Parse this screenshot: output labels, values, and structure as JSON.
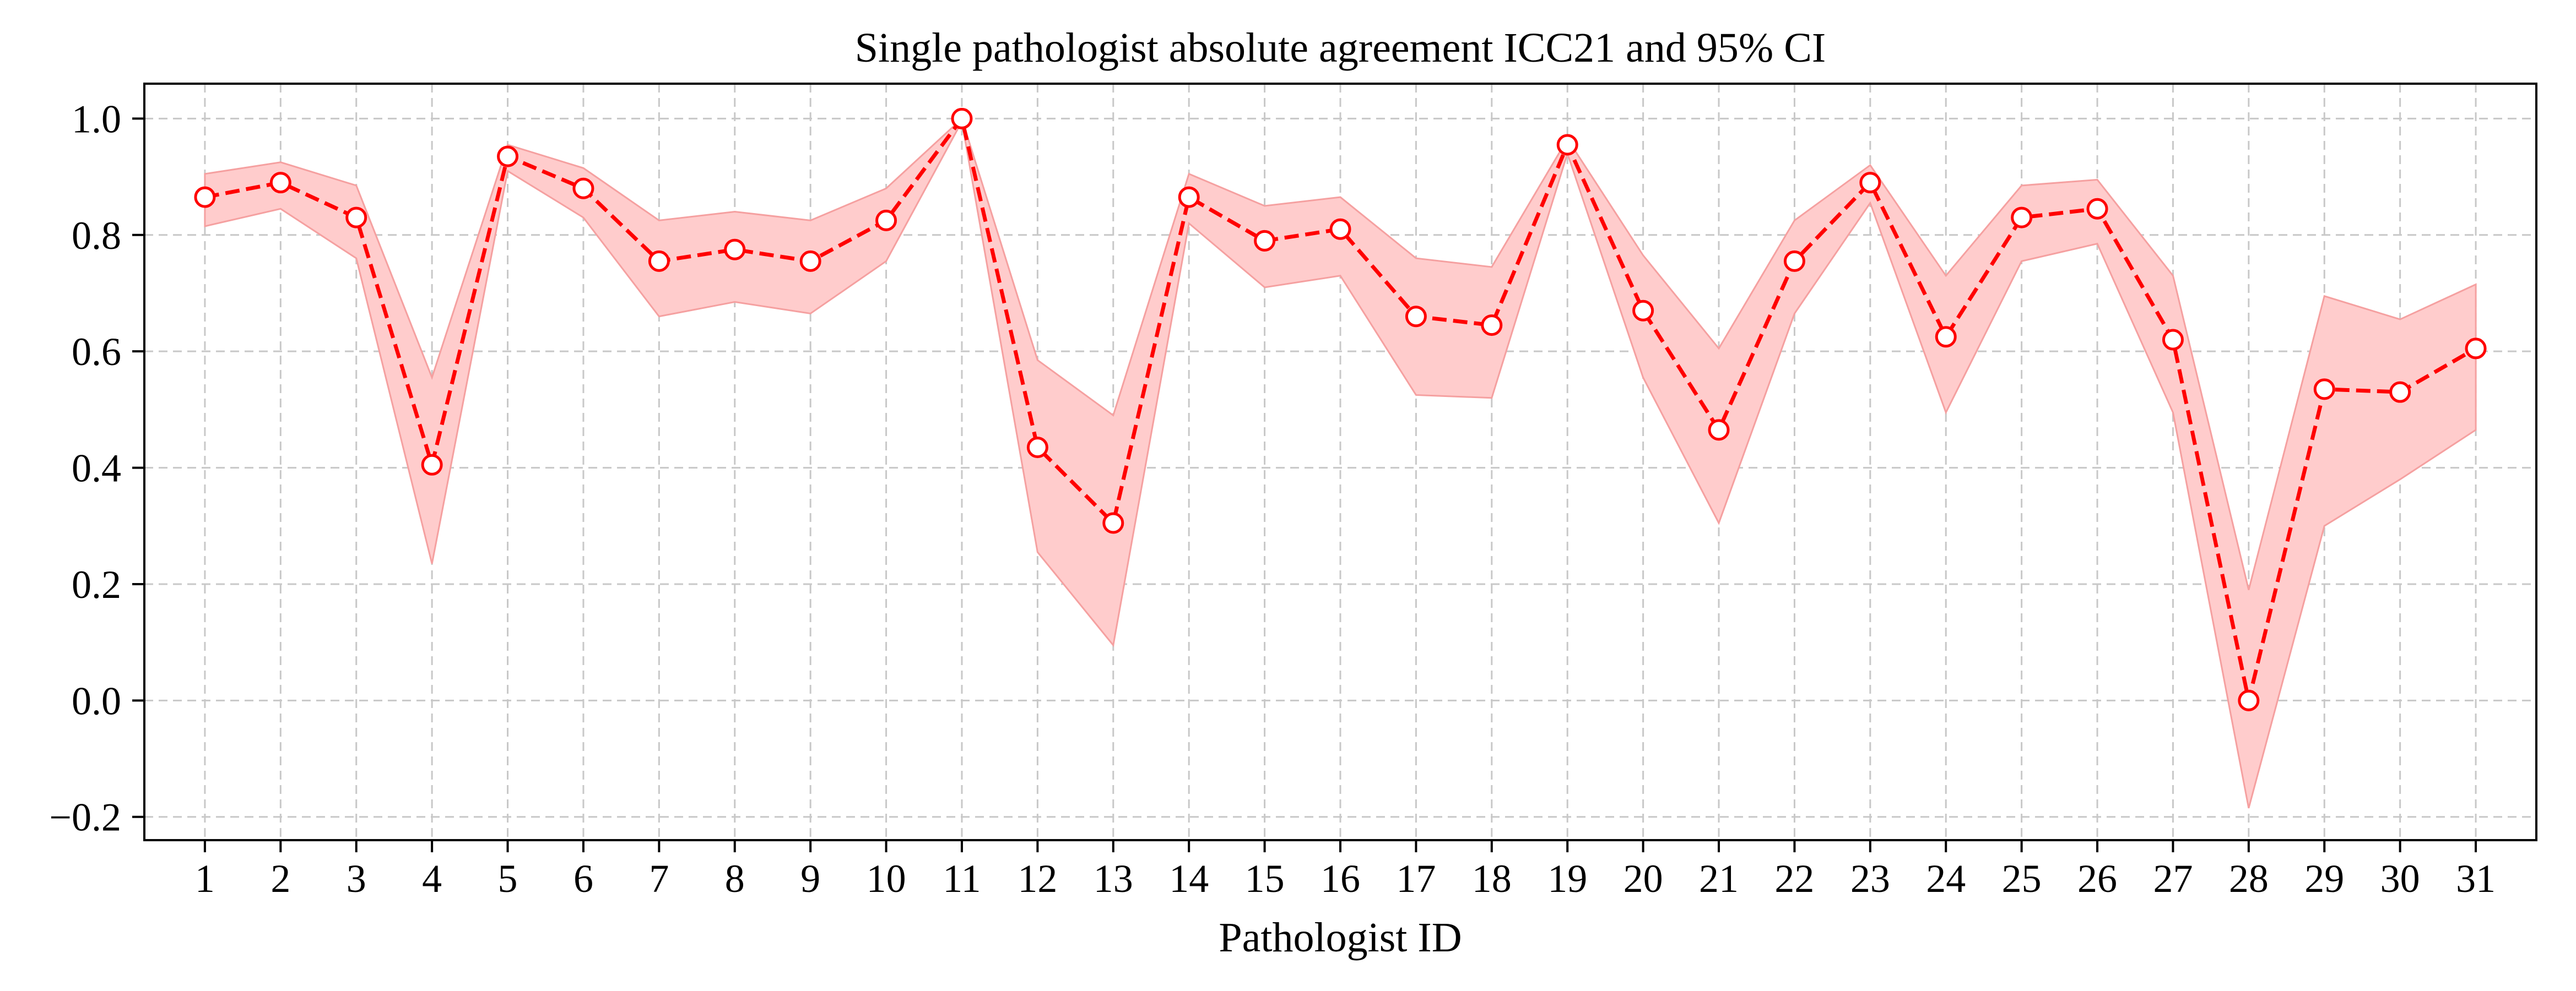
{
  "chart_data": {
    "type": "line",
    "title": "Single pathologist absolute agreement ICC21 and 95% CI",
    "xlabel": "Pathologist ID",
    "ylabel": "",
    "x": [
      1,
      2,
      3,
      4,
      5,
      6,
      7,
      8,
      9,
      10,
      11,
      12,
      13,
      14,
      15,
      16,
      17,
      18,
      19,
      20,
      21,
      22,
      23,
      24,
      25,
      26,
      27,
      28,
      29,
      30,
      31
    ],
    "xticklabels": [
      "1",
      "2",
      "3",
      "4",
      "5",
      "6",
      "7",
      "8",
      "9",
      "10",
      "11",
      "12",
      "13",
      "14",
      "15",
      "16",
      "17",
      "18",
      "19",
      "20",
      "21",
      "22",
      "23",
      "24",
      "25",
      "26",
      "27",
      "28",
      "29",
      "30",
      "31"
    ],
    "yticks": [
      -0.2,
      0.0,
      0.2,
      0.4,
      0.6,
      0.8,
      1.0
    ],
    "yticklabels": [
      "−0.2",
      "0.0",
      "0.2",
      "0.4",
      "0.6",
      "0.8",
      "1.0"
    ],
    "ylim": [
      -0.24,
      1.06
    ],
    "xlim": [
      0.2,
      31.8
    ],
    "grid": true,
    "series": [
      {
        "values": [
          0.865,
          0.89,
          0.83,
          0.405,
          0.935,
          0.88,
          0.755,
          0.775,
          0.755,
          0.825,
          1.0,
          0.435,
          0.305,
          0.865,
          0.79,
          0.81,
          0.66,
          0.645,
          0.955,
          0.67,
          0.465,
          0.755,
          0.89,
          0.625,
          0.83,
          0.845,
          0.62,
          0.0,
          0.535,
          0.53,
          0.605
        ],
        "ci_lower": [
          0.815,
          0.845,
          0.76,
          0.235,
          0.91,
          0.83,
          0.66,
          0.685,
          0.665,
          0.755,
          0.995,
          0.255,
          0.095,
          0.82,
          0.71,
          0.73,
          0.525,
          0.52,
          0.94,
          0.555,
          0.305,
          0.665,
          0.855,
          0.495,
          0.755,
          0.785,
          0.495,
          -0.185,
          0.3,
          0.38,
          0.465
        ],
        "ci_upper": [
          0.905,
          0.925,
          0.885,
          0.555,
          0.955,
          0.915,
          0.825,
          0.84,
          0.825,
          0.88,
          1.0,
          0.585,
          0.49,
          0.905,
          0.85,
          0.865,
          0.76,
          0.745,
          0.965,
          0.765,
          0.605,
          0.825,
          0.92,
          0.73,
          0.885,
          0.895,
          0.73,
          0.19,
          0.695,
          0.655,
          0.715
        ]
      }
    ],
    "colors": {
      "line": "#ff0000",
      "marker_face": "#ffffff",
      "band_fill": "#ffcccc",
      "band_edge": "#f5a0a0"
    }
  }
}
